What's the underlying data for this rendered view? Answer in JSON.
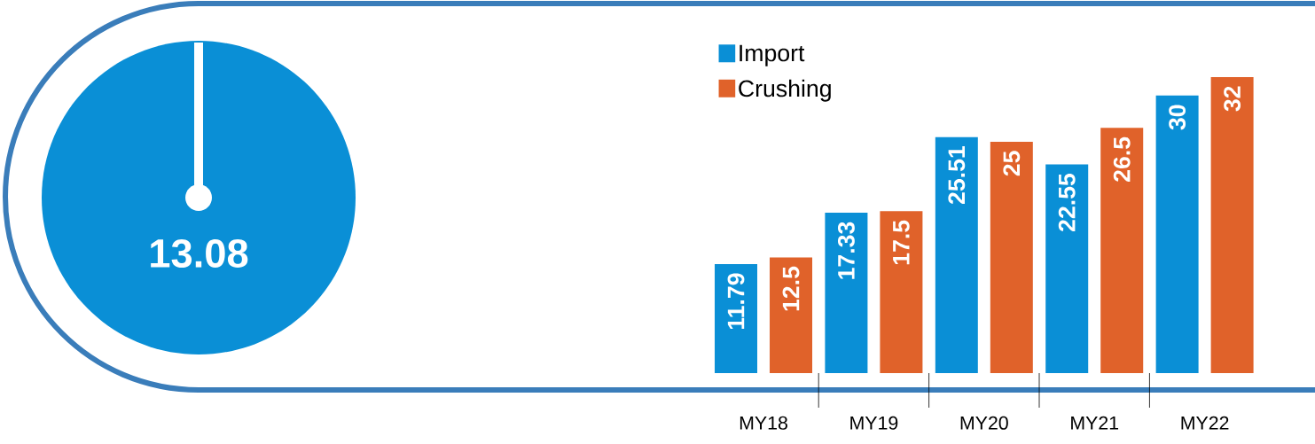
{
  "chart_data": [
    {
      "type": "other",
      "annotations": [
        "13.08"
      ]
    },
    {
      "type": "bar",
      "categories": [
        "MY18",
        "MY19",
        "MY20",
        "MY21",
        "MY22"
      ],
      "series": [
        {
          "name": "Import",
          "color": "#0a8fd6",
          "values": [
            11.79,
            17.33,
            25.51,
            22.55,
            30
          ]
        },
        {
          "name": "Crushing",
          "color": "#e0622a",
          "values": [
            12.5,
            17.5,
            25,
            26.5,
            32
          ]
        }
      ],
      "data_labels": true,
      "legend": "top left",
      "tick_labels": "x"
    }
  ]
}
